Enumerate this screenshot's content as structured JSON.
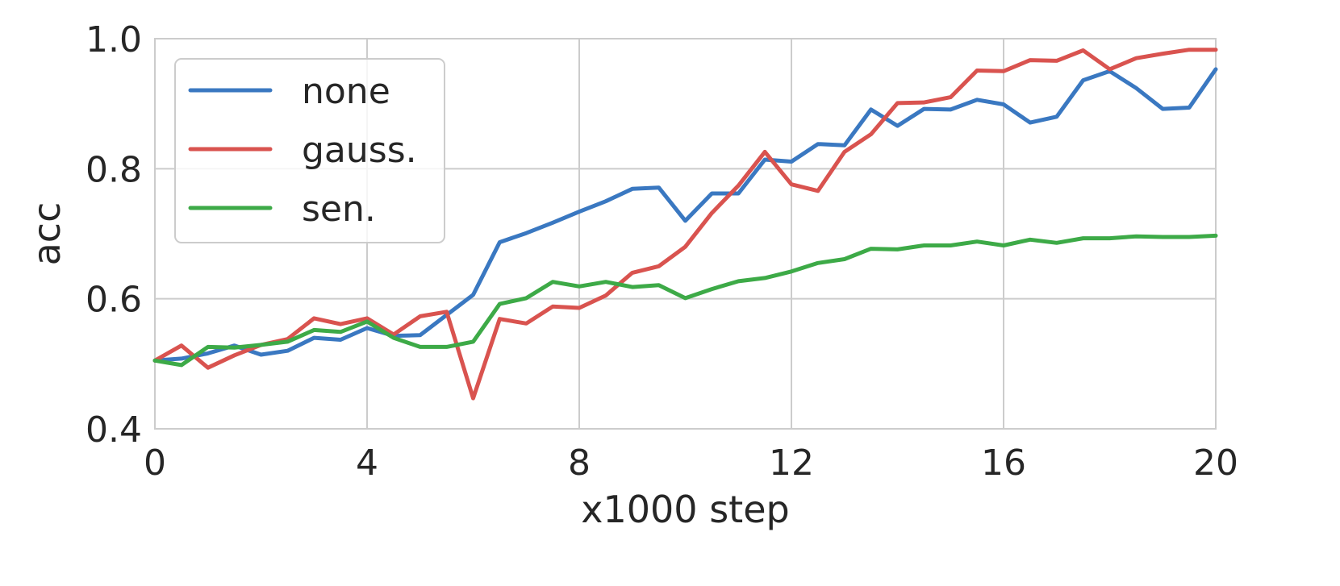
{
  "chart_data": {
    "type": "line",
    "xlabel": "x1000 step",
    "ylabel": "acc",
    "xlim": [
      0,
      20
    ],
    "ylim": [
      0.4,
      1.0
    ],
    "xticks": [
      0,
      4,
      8,
      12,
      16,
      20
    ],
    "xtick_labels": [
      "0",
      "4",
      "8",
      "12",
      "16",
      "20"
    ],
    "yticks": [
      0.4,
      0.6,
      0.8,
      1.0
    ],
    "ytick_labels": [
      "0.4",
      "0.6",
      "0.8",
      "1.0"
    ],
    "grid": true,
    "legend_position": "top-left",
    "x": [
      0,
      0.5,
      1,
      1.5,
      2,
      2.5,
      3,
      3.5,
      4,
      4.5,
      5,
      5.5,
      6,
      6.5,
      7,
      7.5,
      8,
      8.5,
      9,
      9.5,
      10,
      10.5,
      11,
      11.5,
      12,
      12.5,
      13,
      13.5,
      14,
      14.5,
      15,
      15.5,
      16,
      16.5,
      17,
      17.5,
      18,
      18.5,
      19,
      19.5,
      20
    ],
    "series": [
      {
        "name": "none",
        "color": "#3a78c1",
        "values": [
          0.505,
          0.508,
          0.516,
          0.528,
          0.514,
          0.52,
          0.54,
          0.537,
          0.555,
          0.543,
          0.544,
          0.575,
          0.606,
          0.687,
          0.701,
          0.717,
          0.734,
          0.75,
          0.769,
          0.771,
          0.72,
          0.762,
          0.762,
          0.814,
          0.811,
          0.838,
          0.836,
          0.891,
          0.866,
          0.892,
          0.891,
          0.906,
          0.899,
          0.871,
          0.88,
          0.936,
          0.95,
          0.924,
          0.892,
          0.894,
          0.953
        ]
      },
      {
        "name": "gauss.",
        "color": "#d9534f",
        "values": [
          0.505,
          0.528,
          0.494,
          0.513,
          0.529,
          0.538,
          0.57,
          0.561,
          0.57,
          0.545,
          0.573,
          0.58,
          0.447,
          0.569,
          0.562,
          0.588,
          0.586,
          0.605,
          0.64,
          0.65,
          0.68,
          0.732,
          0.774,
          0.826,
          0.776,
          0.766,
          0.826,
          0.853,
          0.901,
          0.902,
          0.91,
          0.951,
          0.95,
          0.967,
          0.966,
          0.982,
          0.953,
          0.97,
          0.977,
          0.983,
          0.983
        ]
      },
      {
        "name": "sen.",
        "color": "#3daa47",
        "values": [
          0.505,
          0.498,
          0.526,
          0.525,
          0.529,
          0.534,
          0.552,
          0.549,
          0.565,
          0.54,
          0.526,
          0.526,
          0.534,
          0.592,
          0.601,
          0.626,
          0.619,
          0.626,
          0.618,
          0.621,
          0.601,
          0.615,
          0.627,
          0.632,
          0.642,
          0.655,
          0.661,
          0.677,
          0.676,
          0.682,
          0.682,
          0.688,
          0.682,
          0.691,
          0.686,
          0.693,
          0.693,
          0.696,
          0.695,
          0.695,
          0.697
        ]
      }
    ]
  }
}
